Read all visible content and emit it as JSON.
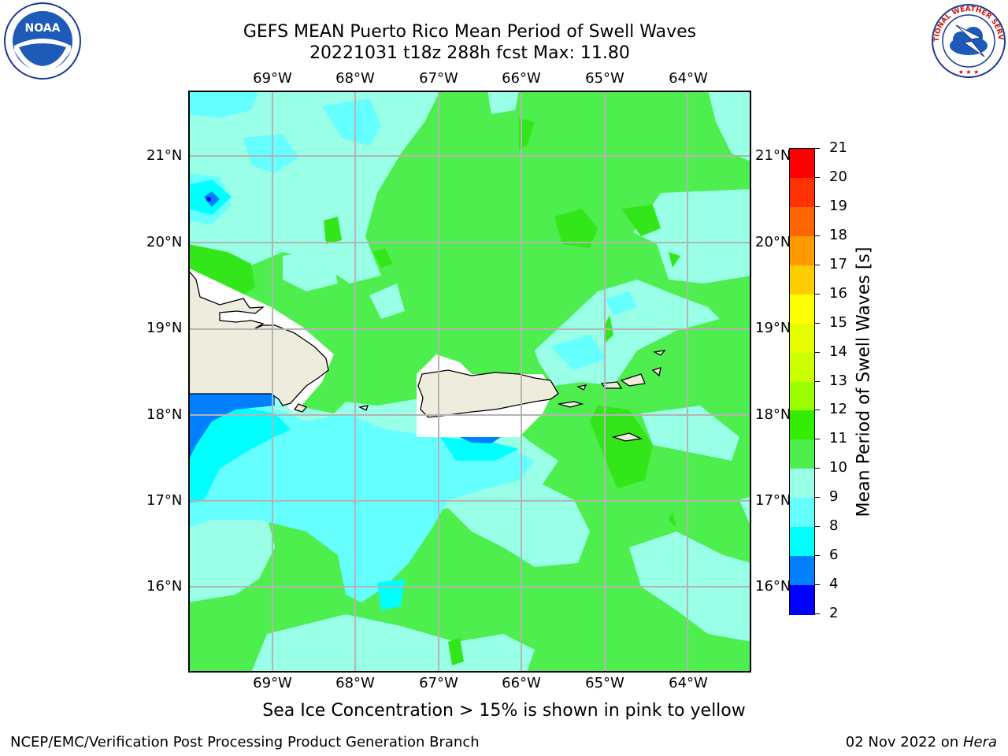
{
  "title": {
    "line1": "GEFS MEAN Puerto Rico Mean Period of Swell Waves",
    "line2": "20221031 t18z 288h fcst   Max: 11.80"
  },
  "logos": {
    "left": {
      "name": "noaa-logo",
      "text": "NOAA"
    },
    "right": {
      "name": "nws-logo",
      "text": "NATIONAL WEATHER SERVICE"
    }
  },
  "map": {
    "lon_labels": [
      "69°W",
      "68°W",
      "67°W",
      "66°W",
      "65°W",
      "64°W"
    ],
    "lat_labels": [
      "21°N",
      "20°N",
      "19°N",
      "18°N",
      "17°N",
      "16°N"
    ],
    "colors": {
      "land": "#eeecdc",
      "grid": "#b4b4b4",
      "c8_9": "#66ffff",
      "c9_10": "#99ffe6",
      "c10_11": "#4dee4d",
      "c11_12": "#33e61a",
      "c6_8": "#00ffff",
      "c4_6": "#0080ff",
      "c2_4": "#0000ff"
    }
  },
  "colorbar": {
    "title": "Mean Period of Swell Waves [s]",
    "tick_labels": [
      "21",
      "20",
      "19",
      "18",
      "17",
      "16",
      "15",
      "14",
      "13",
      "12",
      "11",
      "10",
      "9",
      "8",
      "6",
      "4",
      "2"
    ],
    "levels": [
      {
        "from": "20",
        "to": "21",
        "color": "#ff0000"
      },
      {
        "from": "19",
        "to": "20",
        "color": "#ff3300"
      },
      {
        "from": "18",
        "to": "19",
        "color": "#ff6600"
      },
      {
        "from": "17",
        "to": "18",
        "color": "#ff9900"
      },
      {
        "from": "16",
        "to": "17",
        "color": "#ffcc00"
      },
      {
        "from": "15",
        "to": "16",
        "color": "#ffff00"
      },
      {
        "from": "14",
        "to": "15",
        "color": "#e6ff00"
      },
      {
        "from": "13",
        "to": "14",
        "color": "#ccff00"
      },
      {
        "from": "12",
        "to": "13",
        "color": "#99ff00"
      },
      {
        "from": "11",
        "to": "12",
        "color": "#33ee00"
      },
      {
        "from": "10",
        "to": "11",
        "color": "#4dee4d"
      },
      {
        "from": "9",
        "to": "10",
        "color": "#99ffe6"
      },
      {
        "from": "8",
        "to": "9",
        "color": "#66ffff"
      },
      {
        "from": "6",
        "to": "8",
        "color": "#00ffff"
      },
      {
        "from": "4",
        "to": "6",
        "color": "#0080ff"
      },
      {
        "from": "2",
        "to": "4",
        "color": "#0000ff"
      }
    ]
  },
  "caption": "Sea Ice Concentration > 15% is shown in pink to yellow",
  "footer": {
    "left": "NCEP/EMC/Verification Post Processing Product Generation Branch",
    "right_prefix": "02 Nov 2022 on ",
    "right_machine": "Hera"
  }
}
